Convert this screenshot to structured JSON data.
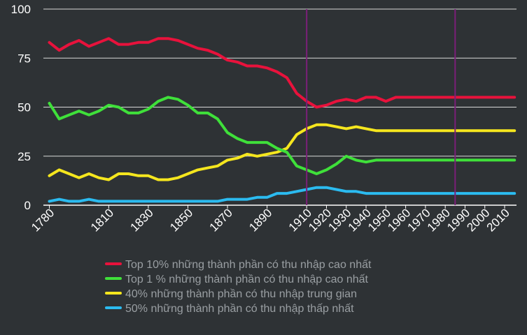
{
  "chart_data": {
    "type": "line",
    "title": "",
    "xlabel": "",
    "ylabel": "",
    "xlim": [
      1777,
      2016
    ],
    "ylim": [
      0,
      100
    ],
    "yticks": [
      0,
      25,
      50,
      75,
      100
    ],
    "xticks": [
      1780,
      1810,
      1830,
      1850,
      1870,
      1890,
      1910,
      1920,
      1930,
      1940,
      1950,
      1960,
      1970,
      1980,
      1990,
      2000,
      2010
    ],
    "grid": "horizontal",
    "legend_position": "bottom",
    "reference_lines": [
      1910,
      1985
    ],
    "reference_line_color": "#7b1f79",
    "x": [
      1780,
      1785,
      1790,
      1795,
      1800,
      1805,
      1810,
      1815,
      1820,
      1825,
      1830,
      1835,
      1840,
      1845,
      1850,
      1855,
      1860,
      1865,
      1870,
      1875,
      1880,
      1885,
      1890,
      1895,
      1900,
      1905,
      1910,
      1915,
      1920,
      1925,
      1930,
      1935,
      1940,
      1945,
      1950,
      1955,
      1960,
      1965,
      1970,
      1975,
      1980,
      1985,
      1990,
      1995,
      2000,
      2005,
      2010,
      2015
    ],
    "series": [
      {
        "name": "Top 10% những thành phần có thu nhập cao nhất",
        "color": "#e8123c",
        "values": [
          83,
          79,
          82,
          84,
          81,
          83,
          85,
          82,
          82,
          83,
          83,
          85,
          85,
          84,
          82,
          80,
          79,
          77,
          74,
          73,
          71,
          71,
          70,
          68,
          65,
          57,
          53,
          50,
          51,
          53,
          54,
          53,
          55,
          55,
          53,
          55,
          55,
          55,
          55,
          55,
          55,
          55,
          55,
          55,
          55,
          55,
          55,
          55
        ]
      },
      {
        "name": "Top 1 % những thành phần có thu nhập cao nhất",
        "color": "#3fe03a",
        "values": [
          52,
          44,
          46,
          48,
          46,
          48,
          51,
          50,
          47,
          47,
          49,
          53,
          55,
          54,
          51,
          47,
          47,
          44,
          37,
          34,
          32,
          32,
          32,
          29,
          27,
          20,
          18,
          16,
          18,
          21,
          25,
          23,
          22,
          23,
          23,
          23,
          23,
          23,
          23,
          23,
          23,
          23,
          23,
          23,
          23,
          23,
          23,
          23
        ]
      },
      {
        "name": "40% những thành phần có thu nhập trung gian",
        "color": "#f5e61e",
        "values": [
          15,
          18,
          16,
          14,
          16,
          14,
          13,
          16,
          16,
          15,
          15,
          13,
          13,
          14,
          16,
          18,
          19,
          20,
          23,
          24,
          26,
          25,
          26,
          27,
          29,
          36,
          39,
          41,
          41,
          40,
          39,
          40,
          39,
          38,
          38,
          38,
          38,
          38,
          38,
          38,
          38,
          38,
          38,
          38,
          38,
          38,
          38,
          38
        ]
      },
      {
        "name": "50% những thành phần có thu nhập thấp nhất",
        "color": "#2bbbf0",
        "values": [
          2,
          3,
          2,
          2,
          3,
          2,
          2,
          2,
          2,
          2,
          2,
          2,
          2,
          2,
          2,
          2,
          2,
          2,
          3,
          3,
          3,
          4,
          4,
          6,
          6,
          7,
          8,
          9,
          9,
          8,
          7,
          7,
          6,
          6,
          6,
          6,
          6,
          6,
          6,
          6,
          6,
          6,
          6,
          6,
          6,
          6,
          6,
          6
        ]
      }
    ]
  }
}
